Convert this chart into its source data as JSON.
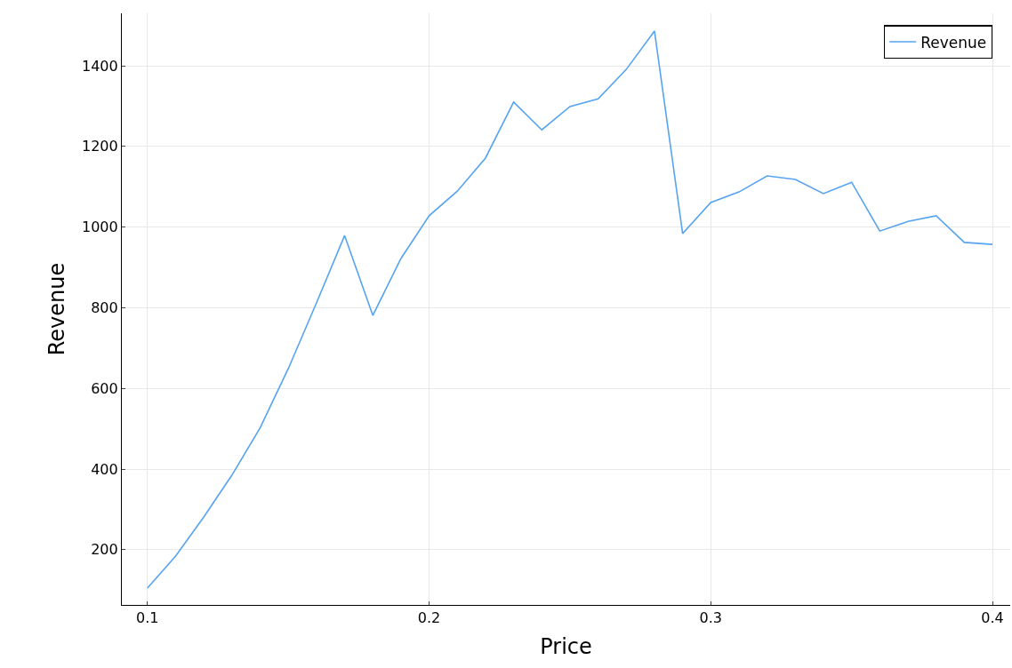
{
  "chart_data": {
    "type": "line",
    "xlabel": "Price",
    "ylabel": "Revenue",
    "x": [
      0.1,
      0.11,
      0.12,
      0.13,
      0.14,
      0.15,
      0.16,
      0.17,
      0.18,
      0.19,
      0.2,
      0.21,
      0.22,
      0.23,
      0.24,
      0.25,
      0.26,
      0.27,
      0.28,
      0.29,
      0.3,
      0.31,
      0.32,
      0.33,
      0.34,
      0.35,
      0.36,
      0.37,
      0.38,
      0.39,
      0.4
    ],
    "series": [
      {
        "name": "Revenue",
        "color": "#56a3f0",
        "values": [
          105,
          184,
          281,
          385,
          502,
          649,
          812,
          979,
          781,
          922,
          1028,
          1089,
          1171,
          1310,
          1241,
          1299,
          1318,
          1391,
          1486,
          984,
          1061,
          1087,
          1127,
          1118,
          1083,
          1111,
          990,
          1014,
          1028,
          962,
          957
        ]
      }
    ],
    "xlim": [
      0.0909,
      0.4063
    ],
    "xticks": [
      0.1,
      0.2,
      0.3,
      0.4
    ],
    "ylim": [
      63,
      1530
    ],
    "yticks": [
      200,
      400,
      600,
      800,
      1000,
      1200,
      1400
    ],
    "grid": true,
    "legend": "top right",
    "marker": "none",
    "line_style": "solid"
  }
}
